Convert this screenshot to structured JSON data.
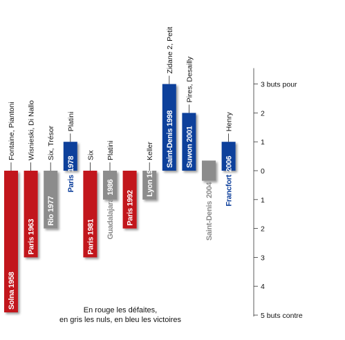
{
  "chart_data": {
    "type": "bar",
    "ylim": [
      -5,
      3.6
    ],
    "colors": {
      "defaite": "#c2141a",
      "nul": "#8c8c8c",
      "victoire": "#0d3f9b",
      "label_dark": "#111111"
    },
    "matches": [
      {
        "label": "Solna 1958",
        "value": -5,
        "result": "defaite",
        "scorers": "Fontaine, Piantoni"
      },
      {
        "label": "Paris 1963",
        "value": -3,
        "result": "defaite",
        "scorers": "Wisnieski, Di Nallo"
      },
      {
        "label": "Rio 1977",
        "value": -2,
        "result": "nul",
        "scorers": "Six, Trésor"
      },
      {
        "label": "Paris",
        "label_secondary": "1978",
        "value": 1,
        "result": "victoire",
        "scorers": "Platini"
      },
      {
        "label": "Paris 1981",
        "value": -3,
        "result": "defaite",
        "scorers": "Six"
      },
      {
        "label": "Guadalajara",
        "label_secondary": "1986",
        "value": -1,
        "result": "nul",
        "scorers": "Platini"
      },
      {
        "label": "Paris 1992",
        "value": -2,
        "result": "defaite",
        "scorers": ""
      },
      {
        "label": "Lyon 1997",
        "value": -1,
        "result": "nul",
        "scorers": "Keller"
      },
      {
        "label": "Saint-Denis 1998",
        "value": 3,
        "result": "victoire",
        "scorers": "Zidane 2, Petit"
      },
      {
        "label": "Suwon 2001",
        "value": 2,
        "result": "victoire",
        "scorers": "Pires, Desailly"
      },
      {
        "label": "Saint-Denis",
        "label_secondary": "2004",
        "value": 0,
        "result": "nul",
        "scorers": ""
      },
      {
        "label": "Francfort",
        "label_secondary": "2006",
        "value": 1,
        "result": "victoire",
        "scorers": "Henry"
      }
    ],
    "axis": {
      "ticks": [
        {
          "value": 3,
          "label": "3 buts pour"
        },
        {
          "value": 2,
          "label": "2"
        },
        {
          "value": 1,
          "label": "1"
        },
        {
          "value": 0,
          "label": "0"
        },
        {
          "value": -1,
          "label": "1"
        },
        {
          "value": -2,
          "label": "2"
        },
        {
          "value": -3,
          "label": "3"
        },
        {
          "value": -4,
          "label": "4"
        },
        {
          "value": -5,
          "label": "5 buts contre"
        }
      ]
    },
    "legend_note": [
      "En rouge les défaites,",
      "en gris les nuls, en bleu les victoires"
    ]
  }
}
